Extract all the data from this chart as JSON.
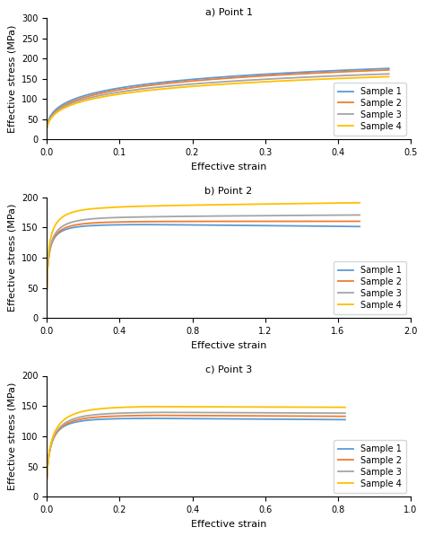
{
  "colors": {
    "sample1": "#5B9BD5",
    "sample2": "#ED7D31",
    "sample3": "#A5A5A5",
    "sample4": "#FFC000"
  },
  "legend_labels": [
    "Sample 1",
    "Sample 2",
    "Sample 3",
    "Sample 4"
  ],
  "subplot_labels": [
    "a) Point 1",
    "b) Point 2",
    "c) Point 3"
  ],
  "ylabel": "Effective stress (MPa)",
  "xlabel": "Effective strain",
  "plot1": {
    "xlim": [
      0,
      0.5
    ],
    "ylim": [
      0,
      300
    ],
    "xticks": [
      0,
      0.1,
      0.2,
      0.3,
      0.4,
      0.5
    ],
    "yticks": [
      0,
      50,
      100,
      150,
      200,
      250,
      300
    ]
  },
  "plot2": {
    "xlim": [
      0,
      2.0
    ],
    "ylim": [
      0,
      200
    ],
    "xticks": [
      0.0,
      0.4,
      0.8,
      1.2,
      1.6,
      2.0
    ],
    "yticks": [
      0,
      50,
      100,
      150,
      200
    ]
  },
  "plot3": {
    "xlim": [
      0,
      1.0
    ],
    "ylim": [
      0,
      200
    ],
    "xticks": [
      0.0,
      0.2,
      0.4,
      0.6,
      0.8,
      1.0
    ],
    "yticks": [
      0,
      50,
      100,
      150,
      200
    ]
  }
}
